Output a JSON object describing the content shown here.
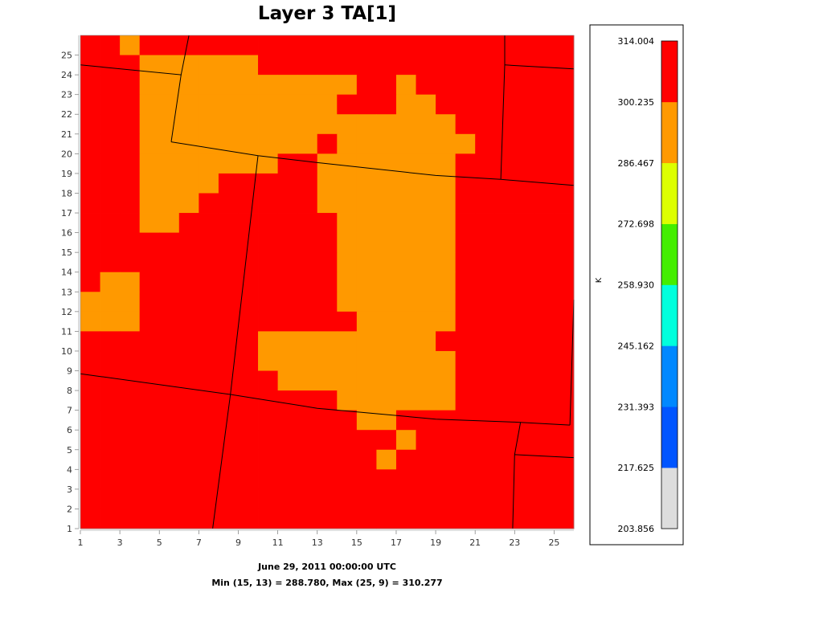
{
  "chart_data": {
    "type": "heatmap",
    "title": "Layer 3 TA[1]",
    "date_label": "June 29, 2011 00:00:00 UTC",
    "stats_label": "Min (15, 13) = 288.780, Max (25, 9) = 310.277",
    "x_ticks": [
      "1",
      "3",
      "5",
      "7",
      "9",
      "11",
      "13",
      "15",
      "17",
      "19",
      "21",
      "23",
      "25"
    ],
    "y_ticks": [
      "1",
      "2",
      "3",
      "4",
      "5",
      "6",
      "7",
      "8",
      "9",
      "10",
      "11",
      "12",
      "13",
      "14",
      "15",
      "16",
      "17",
      "18",
      "19",
      "20",
      "21",
      "22",
      "23",
      "24",
      "25"
    ],
    "xlim": [
      1,
      26
    ],
    "ylim": [
      1,
      26
    ],
    "legend": {
      "unit": "K",
      "levels": [
        "203.856",
        "217.625",
        "231.393",
        "245.162",
        "258.930",
        "272.698",
        "286.467",
        "300.235",
        "314.004"
      ],
      "colors": [
        "#dddddd",
        "#0055ff",
        "#0088ff",
        "#00ffdd",
        "#00ff00",
        "#44ff00",
        "#ddff00",
        "#ff9900",
        "#ff0000"
      ]
    },
    "band_colors": [
      "#dddddd",
      "#0055ff",
      "#0088ff",
      "#00ffdd",
      "#44ee00",
      "#ddff00",
      "#ff9900",
      "#ff0000"
    ],
    "cells_note_legend": "r = row from top (y=25 down to y=1); each string is 25 columns x=1..25; R = red band (300.235-314.004), O = orange band (286.467-300.235)",
    "grid_rows_top_to_bottom": [
      "RRORRRRRRRRRRRRRRRRRRRRRR",
      "RRROOOOOORRRRRRRRRRRRRRRR",
      "RRROOOOOOOOOOORRORRRRRRRR",
      "RRROOOOOOOOOORRROORRRRRRR",
      "RRROOOOOOOOOOOOOOOORRRRRR",
      "RRROOOOOOOOOROOOOOOORRRRR",
      "RRROOOOOOORROOOOOOORRRRRR",
      "RRROOOORRRRROOOOOOORRRRRR",
      "RRROOORRRRRROOOOOOORRRRRR",
      "RRROORRRRRRRROOOOOORRRRRR",
      "RRRRRRRRRRRRROOOOOORRRRRR",
      "RRRRRRRRRRRRROOOOOORRRRRR",
      "ROORRRRRRRRRROOOOOORRRRRR",
      "OOORRRRRRRRRROOOOOORRRRRR",
      "OOORRRRRRRRRRROOOOORRRRRR",
      "RRRRRRRRROOOOOOOOORRRRRRR",
      "RRRRRRRRROOOOOOOOOORRRRRR",
      "RRRRRRRRRROOOOOOOOORRRRRR",
      "RRRRRRRRRRRRROOOOOORRRRRR",
      "RRRRRRRRRRRRRROORRRRRRRRR",
      "RRRRRRRRRRRRRRRRORRRRRRRR",
      "RRRRRRRRRRRRRRRORRRRRRRRR",
      "RRRRRRRRRRRRRRRRRRRRRRRRR",
      "RRRRRRRRRRRRRRRRRRRRRRRRR",
      "RRRRRRRRRRRRRRRRRRRRRRRRR"
    ],
    "boundaries": [
      [
        [
          1,
          24.5
        ],
        [
          6.1,
          24.0
        ],
        [
          6.1,
          24.0
        ],
        [
          6.5,
          26
        ]
      ],
      [
        [
          5.6,
          20.6
        ],
        [
          10.0,
          19.9
        ],
        [
          13,
          19.55
        ],
        [
          19,
          18.9
        ],
        [
          22.3,
          18.7
        ],
        [
          26,
          18.4
        ]
      ],
      [
        [
          5.6,
          20.6
        ],
        [
          6.1,
          24.0
        ]
      ],
      [
        [
          10.0,
          19.9
        ],
        [
          8.6,
          7.8
        ],
        [
          7.7,
          1
        ]
      ],
      [
        [
          1,
          8.85
        ],
        [
          8.6,
          7.8
        ],
        [
          13,
          7.1
        ],
        [
          19,
          6.55
        ],
        [
          23,
          6.4
        ],
        [
          25.8,
          6.25
        ]
      ],
      [
        [
          22.3,
          18.7
        ],
        [
          22.5,
          24.5
        ],
        [
          22.5,
          26
        ]
      ],
      [
        [
          22.5,
          24.5
        ],
        [
          26,
          24.3
        ]
      ],
      [
        [
          23.3,
          6.4
        ],
        [
          23,
          4.75
        ],
        [
          22.9,
          1
        ]
      ],
      [
        [
          23,
          4.75
        ],
        [
          26,
          4.6
        ]
      ],
      [
        [
          25.8,
          6.25
        ],
        [
          26,
          12.6
        ]
      ]
    ]
  }
}
